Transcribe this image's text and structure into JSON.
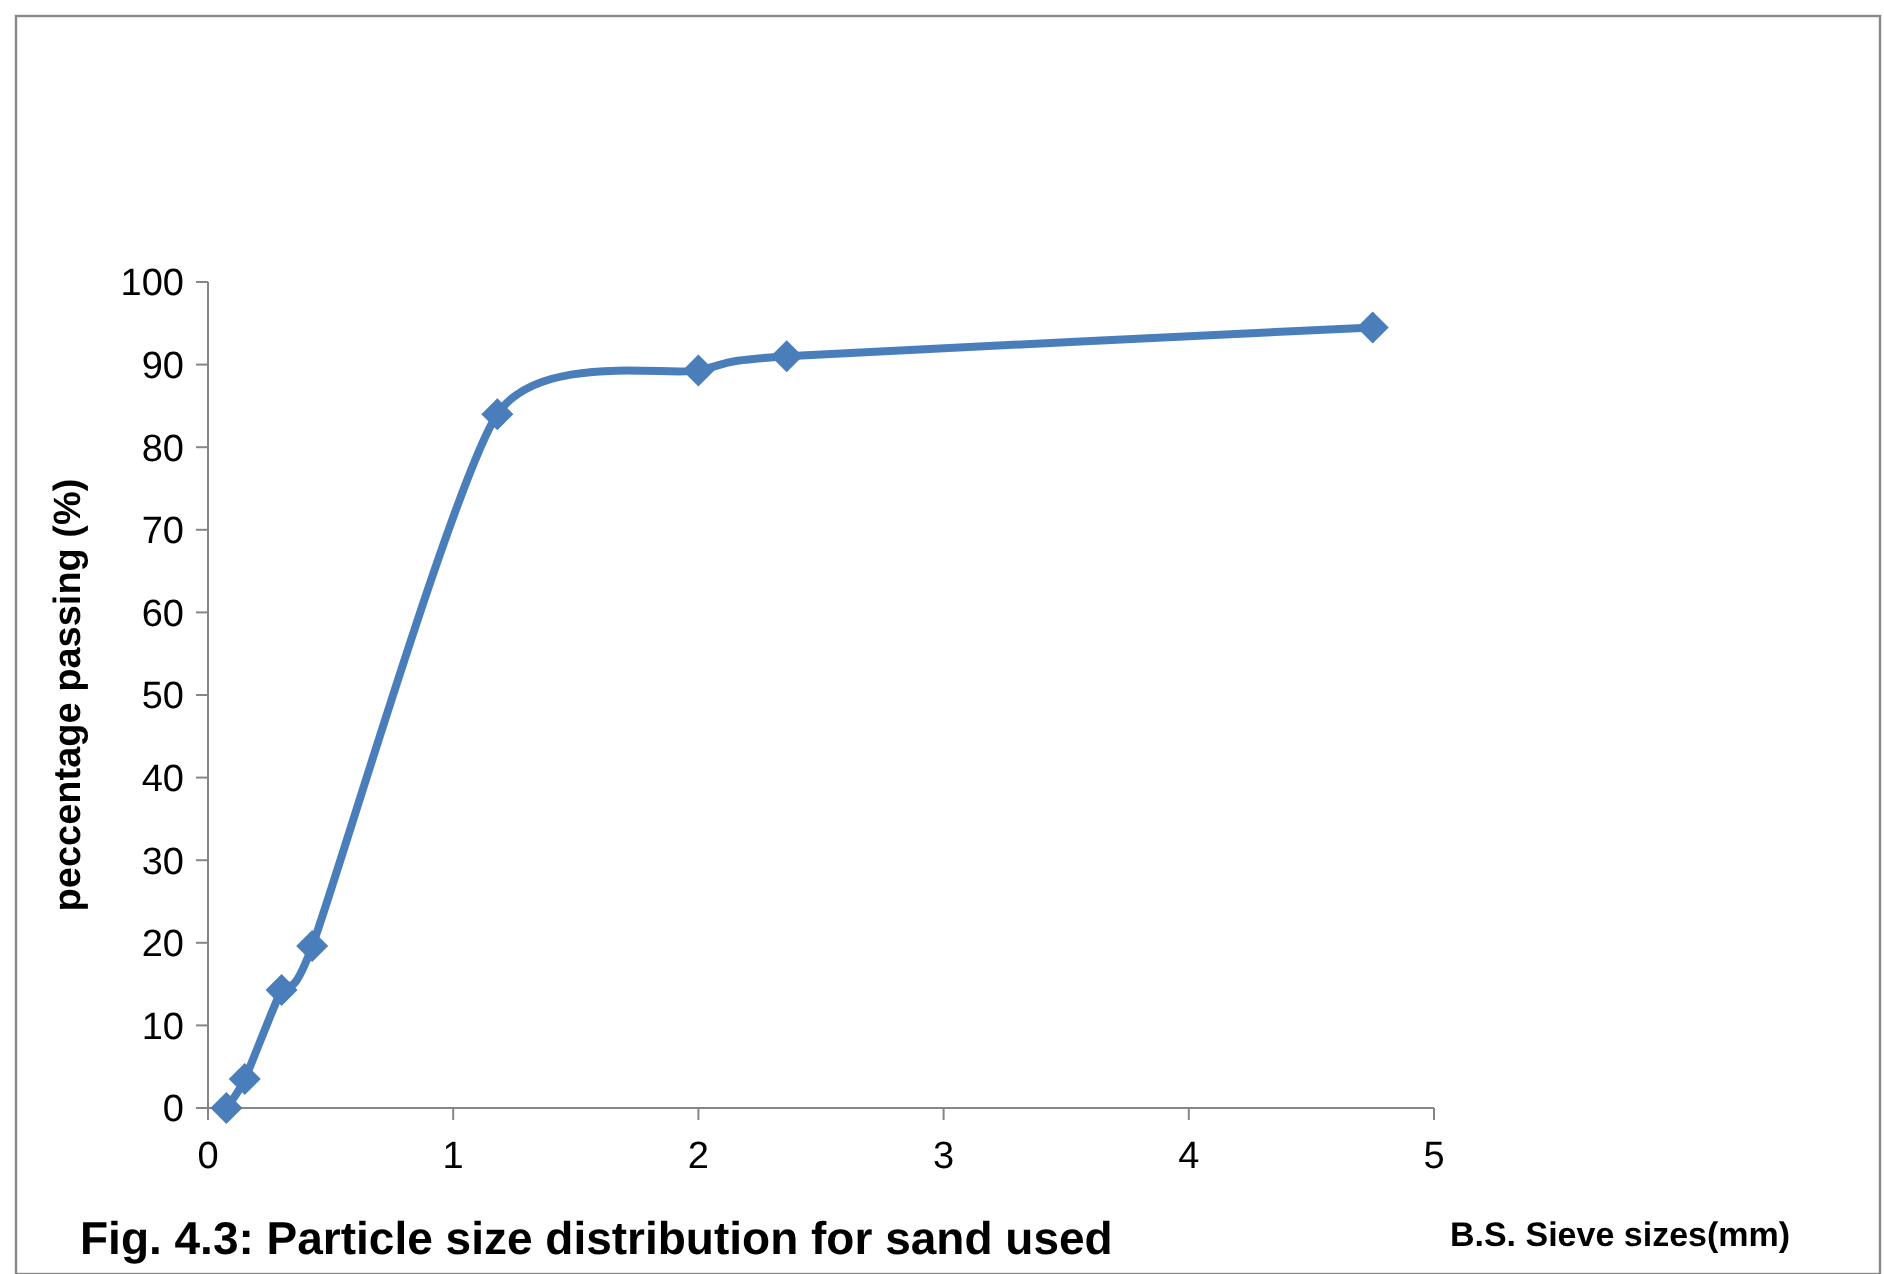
{
  "chart_data": {
    "type": "line",
    "title": "Fig. 4.3: Particle size distribution for sand used",
    "xlabel": "B.S. Sieve sizes(mm)",
    "ylabel": "peccentage passing (%)",
    "x": [
      0.075,
      0.15,
      0.3,
      0.425,
      1.18,
      2.0,
      2.36,
      4.75
    ],
    "series": [
      {
        "color": "#4a7ebb",
        "values": [
          0,
          3.5,
          14.3,
          19.6,
          84,
          89.3,
          91,
          94.5
        ]
      }
    ],
    "xlim": [
      0,
      5
    ],
    "xticks": [
      0,
      1,
      2,
      3,
      4,
      5
    ],
    "ylim": [
      0,
      100
    ],
    "yticks": [
      0,
      10,
      20,
      30,
      40,
      50,
      60,
      70,
      80,
      90,
      100
    ],
    "marker": "diamond",
    "line_style": "solid",
    "grid": false
  }
}
